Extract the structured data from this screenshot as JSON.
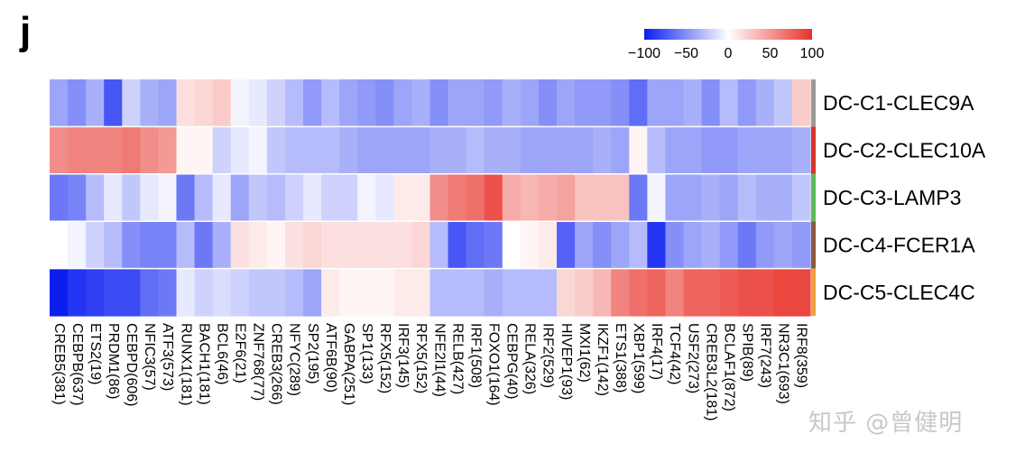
{
  "figure": {
    "panel_label": "j",
    "watermark": "知乎 @曾健明"
  },
  "colors": {
    "low": "#0a1ef0",
    "mid": "#ffffff",
    "high": "#e8322a"
  },
  "chart_data": {
    "type": "heatmap",
    "title": "",
    "colorbar": {
      "min": -100,
      "max": 100,
      "tick_values": [
        -100,
        -50,
        0,
        50,
        100
      ],
      "tick_labels": [
        "−100",
        "−50",
        "0",
        "50",
        "100"
      ],
      "placement": "top-right"
    },
    "rows": [
      {
        "name": "DC-C1-CLEC9A",
        "color": "#9a9a9a"
      },
      {
        "name": "DC-C2-CLEC10A",
        "color": "#d9342b"
      },
      {
        "name": "DC-C3-LAMP3",
        "color": "#5dbb55"
      },
      {
        "name": "DC-C4-FCER1A",
        "color": "#8b5a3c"
      },
      {
        "name": "DC-C5-CLEC4C",
        "color": "#f0a040"
      }
    ],
    "columns": [
      "CREB5(381)",
      "CEBPB(637)",
      "ETS2(19)",
      "PRDM1(86)",
      "CEBPD(606)",
      "NFIC3(57)",
      "ATF3(573)",
      "RUNX1(181)",
      "BACH1(181)",
      "BCL6(46)",
      "E2F6(21)",
      "ZNF768(77)",
      "CREB3(266)",
      "NFYC(289)",
      "SP2(195)",
      "ATF6B(90)",
      "GABPA(251)",
      "SP1(133)",
      "RFX5(152)",
      "IRF3(145)",
      "RFX5(152)",
      "NFE2l1(44)",
      "RELB(427)",
      "IRF1(508)",
      "FOXO1(164)",
      "CEBPG(40)",
      "RELA(326)",
      "IRF2(529)",
      "HIVEP1(93)",
      "MXI1(62)",
      "IKZF1(142)",
      "ETS1(388)",
      "XBP1(599)",
      "IRF4(17)",
      "TCF4(42)",
      "USF2(273)",
      "CREB3L2(181)",
      "BCLAF1(872)",
      "SPIB(89)",
      "IRF7(243)",
      "NR3C1(693)",
      "IRF8(359)"
    ],
    "values": [
      [
        -40,
        -50,
        -35,
        -75,
        -20,
        -35,
        -40,
        15,
        20,
        25,
        -5,
        -10,
        -20,
        -30,
        -45,
        -30,
        -40,
        -45,
        -50,
        -40,
        -35,
        -50,
        -40,
        -40,
        -45,
        -35,
        -40,
        -50,
        -40,
        -45,
        -45,
        -50,
        -65,
        -40,
        -40,
        -35,
        -50,
        -30,
        -45,
        -35,
        -25,
        25
      ],
      [
        55,
        60,
        60,
        60,
        65,
        55,
        50,
        5,
        5,
        -20,
        -10,
        -5,
        -25,
        -30,
        -30,
        -30,
        -35,
        -40,
        -40,
        -40,
        -40,
        -35,
        -35,
        -30,
        -35,
        -35,
        -40,
        -40,
        -40,
        -40,
        -35,
        -40,
        5,
        -30,
        -40,
        -40,
        -45,
        -45,
        -40,
        -40,
        -40,
        -35
      ],
      [
        -60,
        -55,
        -30,
        -10,
        -25,
        -10,
        -5,
        -60,
        -30,
        -10,
        -40,
        -25,
        -30,
        -20,
        -10,
        -20,
        -20,
        -5,
        -10,
        10,
        10,
        55,
        65,
        70,
        85,
        40,
        35,
        40,
        45,
        30,
        30,
        30,
        -60,
        -5,
        -40,
        -40,
        -35,
        -40,
        -30,
        -35,
        -35,
        -25
      ],
      [
        0,
        -5,
        -20,
        -30,
        -50,
        -55,
        -55,
        -30,
        -60,
        -35,
        15,
        10,
        5,
        15,
        20,
        15,
        15,
        15,
        15,
        15,
        20,
        -30,
        -75,
        -65,
        -60,
        0,
        5,
        10,
        -70,
        -40,
        -50,
        -40,
        -30,
        -90,
        -50,
        -40,
        -35,
        -45,
        -60,
        -45,
        -40,
        -45
      ],
      [
        -100,
        -90,
        -85,
        -80,
        -80,
        -65,
        -60,
        -10,
        -20,
        -15,
        -20,
        -25,
        -25,
        -30,
        -40,
        10,
        5,
        5,
        5,
        10,
        10,
        -30,
        -30,
        -30,
        -35,
        -30,
        -30,
        -30,
        20,
        25,
        35,
        60,
        70,
        75,
        60,
        75,
        75,
        80,
        85,
        85,
        90,
        90
      ]
    ]
  }
}
